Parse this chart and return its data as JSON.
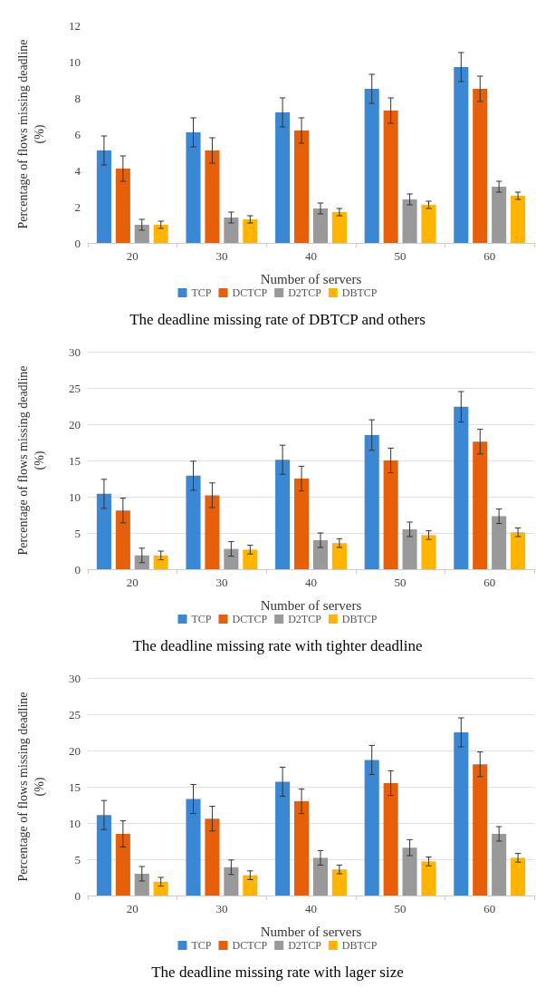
{
  "chart_data": [
    {
      "type": "bar",
      "title": "The deadline missing rate of DBTCP and others",
      "xlabel": "Number of servers",
      "ylabel": "Percentage of flows missing deadline\n(%)",
      "categories": [
        "20",
        "30",
        "40",
        "50",
        "60"
      ],
      "ylim": [
        0,
        12
      ],
      "yticks": [
        0,
        2,
        4,
        6,
        8,
        10,
        12
      ],
      "grid": false,
      "legend": "bottom",
      "series": [
        {
          "name": "TCP",
          "color": "#3a87d4",
          "values": [
            5.1,
            6.1,
            7.2,
            8.5,
            9.7
          ],
          "errors": [
            0.8,
            0.8,
            0.8,
            0.8,
            0.8
          ]
        },
        {
          "name": "DCTCP",
          "color": "#e85f0a",
          "values": [
            4.1,
            5.1,
            6.2,
            7.3,
            8.5
          ],
          "errors": [
            0.7,
            0.7,
            0.7,
            0.7,
            0.7
          ]
        },
        {
          "name": "D2TCP",
          "color": "#999999",
          "values": [
            1.0,
            1.4,
            1.9,
            2.4,
            3.1
          ],
          "errors": [
            0.3,
            0.3,
            0.3,
            0.3,
            0.3
          ]
        },
        {
          "name": "DBTCP",
          "color": "#ffb400",
          "values": [
            1.0,
            1.3,
            1.7,
            2.1,
            2.6
          ],
          "errors": [
            0.2,
            0.2,
            0.2,
            0.2,
            0.2
          ]
        }
      ]
    },
    {
      "type": "bar",
      "title": "The deadline missing rate with tighter deadline",
      "xlabel": "Number of servers",
      "ylabel": "Percentage of flows missing deadline\n(%)",
      "categories": [
        "20",
        "30",
        "40",
        "50",
        "60"
      ],
      "ylim": [
        0,
        30
      ],
      "yticks": [
        0,
        5,
        10,
        15,
        20,
        25,
        30
      ],
      "grid": "y",
      "legend": "bottom",
      "series": [
        {
          "name": "TCP",
          "color": "#3a87d4",
          "values": [
            10.4,
            12.9,
            15.1,
            18.5,
            22.4
          ],
          "errors": [
            2,
            2,
            2,
            2.1,
            2.1
          ]
        },
        {
          "name": "DCTCP",
          "color": "#e85f0a",
          "values": [
            8.1,
            10.2,
            12.5,
            15.0,
            17.6
          ],
          "errors": [
            1.7,
            1.7,
            1.7,
            1.7,
            1.7
          ]
        },
        {
          "name": "D2TCP",
          "color": "#999999",
          "values": [
            1.9,
            2.8,
            4.0,
            5.5,
            7.3
          ],
          "errors": [
            1,
            1,
            1,
            1,
            1
          ]
        },
        {
          "name": "DBTCP",
          "color": "#ffb400",
          "values": [
            1.9,
            2.7,
            3.6,
            4.7,
            5.1
          ],
          "errors": [
            0.6,
            0.6,
            0.6,
            0.6,
            0.6
          ]
        }
      ]
    },
    {
      "type": "bar",
      "title": "The deadline missing rate with lager size",
      "xlabel": "Number of servers",
      "ylabel": "Percentage of flows missing deadline\n(%)",
      "categories": [
        "20",
        "30",
        "40",
        "50",
        "60"
      ],
      "ylim": [
        0,
        30
      ],
      "yticks": [
        0,
        5,
        10,
        15,
        20,
        25,
        30
      ],
      "grid": "y",
      "legend": "bottom",
      "series": [
        {
          "name": "TCP",
          "color": "#3a87d4",
          "values": [
            11.1,
            13.3,
            15.7,
            18.7,
            22.5
          ],
          "errors": [
            2,
            2,
            2,
            2,
            2
          ]
        },
        {
          "name": "DCTCP",
          "color": "#e85f0a",
          "values": [
            8.5,
            10.6,
            13.0,
            15.5,
            18.1
          ],
          "errors": [
            1.8,
            1.7,
            1.7,
            1.7,
            1.7
          ]
        },
        {
          "name": "D2TCP",
          "color": "#999999",
          "values": [
            3.0,
            3.9,
            5.2,
            6.6,
            8.5
          ],
          "errors": [
            1,
            1,
            1,
            1.1,
            1
          ]
        },
        {
          "name": "DBTCP",
          "color": "#ffb400",
          "values": [
            1.9,
            2.8,
            3.6,
            4.7,
            5.2
          ],
          "errors": [
            0.6,
            0.6,
            0.6,
            0.6,
            0.6
          ]
        }
      ]
    }
  ]
}
